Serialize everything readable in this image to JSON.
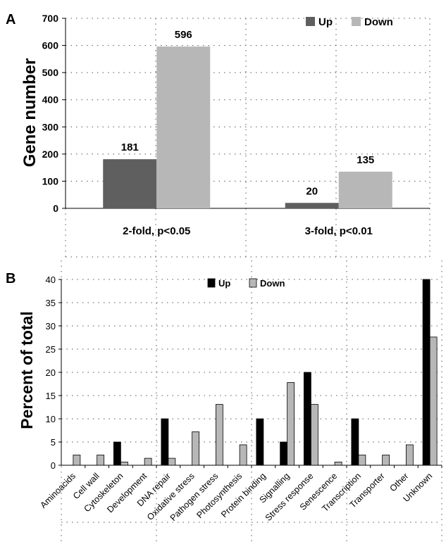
{
  "chart_data": [
    {
      "panel": "A",
      "type": "bar",
      "ylabel": "Gene number",
      "ylim": [
        0,
        700
      ],
      "ytick_labels": [
        "0",
        "100",
        "200",
        "300",
        "400",
        "500",
        "600",
        "700"
      ],
      "categories": [
        "2-fold, p<0.05",
        "3-fold, p<0.01"
      ],
      "series": [
        {
          "name": "Up",
          "values": [
            181,
            20
          ],
          "labels": [
            "181",
            "20"
          ],
          "color": "#5f5f5f"
        },
        {
          "name": "Down",
          "values": [
            596,
            135
          ],
          "labels": [
            "596",
            "135"
          ],
          "color": "#b7b7b7"
        }
      ],
      "legend": "top-right",
      "grid": true
    },
    {
      "panel": "B",
      "type": "bar",
      "ylabel": "Percent of total",
      "ylim": [
        0,
        40
      ],
      "ytick_labels": [
        "0",
        "5",
        "10",
        "15",
        "20",
        "25",
        "30",
        "35",
        "40"
      ],
      "categories": [
        "Aminoacids",
        "Cell wall",
        "Cytoskeleton",
        "Development",
        "DNA repair",
        "Oxidative stress",
        "Pathogen stress",
        "Photosynthesis",
        "Protein binding",
        "Signalling",
        "Stress response",
        "Senescence",
        "Transcription",
        "Transporter",
        "Other",
        "Unknown"
      ],
      "series": [
        {
          "name": "Up",
          "values": [
            0,
            0,
            5,
            0,
            10,
            0,
            0,
            0,
            10,
            5,
            20,
            0,
            10,
            0,
            0,
            40
          ],
          "color": "#000000"
        },
        {
          "name": "Down",
          "values": [
            2.2,
            2.2,
            0.7,
            1.5,
            1.5,
            7.2,
            13.1,
            4.4,
            0,
            17.8,
            13.1,
            0.7,
            2.2,
            2.2,
            4.4,
            27.6
          ],
          "color": "#b7b7b7"
        }
      ],
      "legend": "top",
      "grid": true
    }
  ]
}
